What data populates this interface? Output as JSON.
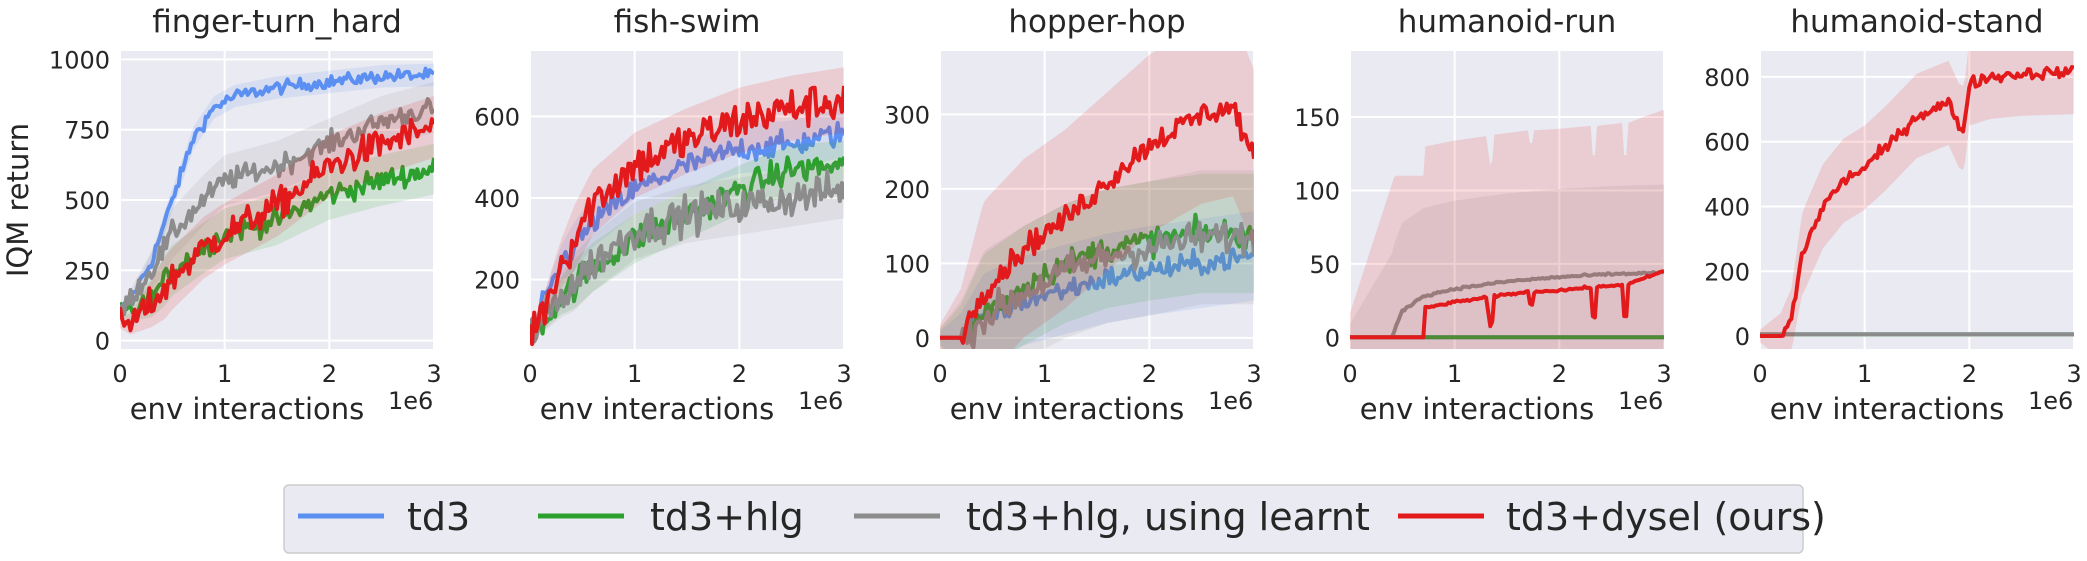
{
  "chart_data": [
    {
      "type": "line",
      "title": "finger-turn_hard",
      "xlabel": "env interactions",
      "x_offset_label": "1e6",
      "ylabel": "IQM return",
      "xlim": [
        0,
        3
      ],
      "ylim": [
        -30,
        1030
      ],
      "xticks": [
        0,
        1,
        2,
        3
      ],
      "yticks": [
        0,
        250,
        500,
        750,
        1000
      ],
      "series": [
        {
          "name": "td3",
          "color": "#5b8ff1",
          "noise": 22,
          "band": 40,
          "x": [
            0,
            0.1,
            0.3,
            0.5,
            0.7,
            0.9,
            1.1,
            1.5,
            2.0,
            2.5,
            3.0
          ],
          "y": [
            100,
            150,
            280,
            500,
            720,
            830,
            870,
            900,
            920,
            940,
            945
          ]
        },
        {
          "name": "td3+hlg",
          "color": "#2ca02c",
          "noise": 40,
          "band": 90,
          "x": [
            0,
            0.1,
            0.3,
            0.5,
            0.8,
            1.0,
            1.5,
            2.0,
            2.5,
            3.0
          ],
          "y": [
            100,
            100,
            150,
            250,
            330,
            380,
            430,
            520,
            570,
            610
          ]
        },
        {
          "name": "td3+hlg, using learnt",
          "color": "#8c8c8c",
          "noise": 38,
          "band": 90,
          "x": [
            0,
            0.1,
            0.3,
            0.5,
            0.8,
            1.0,
            1.5,
            2.0,
            2.5,
            3.0
          ],
          "y": [
            100,
            150,
            250,
            380,
            500,
            570,
            620,
            700,
            780,
            830
          ]
        },
        {
          "name": "td3+dysel (ours)",
          "color": "#e31a1c",
          "noise": 55,
          "band": 110,
          "x": [
            0,
            0.1,
            0.3,
            0.5,
            0.8,
            1.0,
            1.5,
            2.0,
            2.5,
            3.0
          ],
          "y": [
            60,
            60,
            130,
            220,
            330,
            380,
            480,
            620,
            700,
            760
          ]
        }
      ]
    },
    {
      "type": "line",
      "title": "fish-swim",
      "xlabel": "env interactions",
      "x_offset_label": "1e6",
      "ylabel": "",
      "xlim": [
        0,
        3
      ],
      "ylim": [
        30,
        760
      ],
      "xticks": [
        0,
        1,
        2,
        3
      ],
      "yticks": [
        200,
        400,
        600
      ],
      "series": [
        {
          "name": "td3",
          "color": "#5b8ff1",
          "noise": 30,
          "band": 60,
          "x": [
            0,
            0.1,
            0.3,
            0.6,
            1.0,
            1.5,
            2.0,
            2.5,
            3.0
          ],
          "y": [
            70,
            120,
            240,
            340,
            420,
            480,
            520,
            530,
            560
          ]
        },
        {
          "name": "td3+hlg",
          "color": "#2ca02c",
          "noise": 35,
          "band": 60,
          "x": [
            0,
            0.1,
            0.3,
            0.6,
            1.0,
            1.5,
            2.0,
            2.5,
            3.0
          ],
          "y": [
            70,
            90,
            160,
            230,
            300,
            360,
            420,
            470,
            480
          ]
        },
        {
          "name": "td3+hlg, using learnt",
          "color": "#8c8c8c",
          "noise": 45,
          "band": 70,
          "x": [
            0,
            0.1,
            0.3,
            0.6,
            1.0,
            1.5,
            2.0,
            2.5,
            3.0
          ],
          "y": [
            70,
            90,
            160,
            240,
            320,
            360,
            380,
            400,
            420
          ]
        },
        {
          "name": "td3+dysel (ours)",
          "color": "#e31a1c",
          "noise": 50,
          "band": 80,
          "x": [
            0,
            0.1,
            0.3,
            0.6,
            1.0,
            1.5,
            2.0,
            2.5,
            3.0
          ],
          "y": [
            70,
            110,
            240,
            390,
            480,
            540,
            590,
            620,
            640
          ]
        }
      ]
    },
    {
      "type": "line",
      "title": "hopper-hop",
      "xlabel": "env interactions",
      "x_offset_label": "1e6",
      "ylabel": "",
      "xlim": [
        0,
        3
      ],
      "ylim": [
        -15,
        385
      ],
      "xticks": [
        0,
        1,
        2,
        3
      ],
      "yticks": [
        0,
        100,
        200,
        300
      ],
      "series": [
        {
          "name": "td3",
          "color": "#5b8ff1",
          "noise": 15,
          "band": 60,
          "x": [
            0,
            0.2,
            0.4,
            0.8,
            1.2,
            1.6,
            2.0,
            2.5,
            3.0
          ],
          "y": [
            0,
            0,
            25,
            50,
            65,
            80,
            90,
            100,
            110
          ]
        },
        {
          "name": "td3+hlg",
          "color": "#2ca02c",
          "noise": 18,
          "band": 80,
          "x": [
            0,
            0.2,
            0.4,
            0.8,
            1.2,
            1.6,
            2.0,
            2.5,
            3.0
          ],
          "y": [
            0,
            0,
            30,
            70,
            100,
            120,
            130,
            140,
            140
          ]
        },
        {
          "name": "td3+hlg, using learnt",
          "color": "#8c8c8c",
          "noise": 22,
          "band": 90,
          "x": [
            0,
            0.2,
            0.4,
            0.8,
            1.2,
            1.6,
            2.0,
            2.5,
            3.0
          ],
          "y": [
            0,
            0,
            25,
            60,
            90,
            110,
            120,
            135,
            135
          ]
        },
        {
          "name": "td3+dysel (ours)",
          "color": "#e31a1c",
          "noise": 16,
          "band": 120,
          "x": [
            0,
            0.2,
            0.4,
            0.8,
            1.2,
            1.6,
            2.0,
            2.5,
            2.8,
            3.0
          ],
          "y": [
            0,
            0,
            60,
            120,
            160,
            210,
            260,
            300,
            310,
            240
          ]
        }
      ]
    },
    {
      "type": "line",
      "title": "humanoid-run",
      "xlabel": "env interactions",
      "x_offset_label": "1e6",
      "ylabel": "",
      "xlim": [
        0,
        3
      ],
      "ylim": [
        -8,
        195
      ],
      "xticks": [
        0,
        1,
        2,
        3
      ],
      "yticks": [
        0,
        50,
        100,
        150
      ],
      "series": [
        {
          "name": "td3",
          "color": "#5b8ff1",
          "noise": 0,
          "band": 0,
          "x": [
            0,
            3.0
          ],
          "y": [
            0,
            0
          ]
        },
        {
          "name": "td3+hlg",
          "color": "#2ca02c",
          "noise": 0,
          "band": 0,
          "x": [
            0,
            3.0
          ],
          "y": [
            0,
            0
          ]
        },
        {
          "name": "td3+hlg, using learnt",
          "color": "#8c8c8c",
          "noise": 0.8,
          "band": 60,
          "x": [
            0,
            0.4,
            0.5,
            0.7,
            1.0,
            1.5,
            2.0,
            2.5,
            3.0
          ],
          "y": [
            0,
            0,
            18,
            28,
            33,
            38,
            41,
            43,
            44
          ]
        },
        {
          "name": "td3+dysel (ours)",
          "color": "#e31a1c",
          "noise": 0.8,
          "band": 110,
          "x": [
            0,
            0.7,
            0.72,
            1.0,
            1.3,
            1.35,
            1.38,
            1.6,
            1.7,
            1.73,
            1.76,
            2.0,
            2.3,
            2.33,
            2.36,
            2.6,
            2.63,
            2.66,
            2.8,
            3.0
          ],
          "y": [
            0,
            0,
            20,
            24,
            27,
            2,
            28,
            30,
            31,
            18,
            31,
            32,
            34,
            4,
            34,
            36,
            3,
            36,
            40,
            45
          ]
        }
      ]
    },
    {
      "type": "line",
      "title": "humanoid-stand",
      "xlabel": "env interactions",
      "x_offset_label": "1e6",
      "ylabel": "",
      "xlim": [
        0,
        3
      ],
      "ylim": [
        -40,
        880
      ],
      "xticks": [
        0,
        1,
        2,
        3
      ],
      "yticks": [
        0,
        200,
        400,
        600,
        800
      ],
      "series": [
        {
          "name": "td3",
          "color": "#5b8ff1",
          "noise": 0,
          "band": 0,
          "x": [
            0,
            3.0
          ],
          "y": [
            5,
            5
          ]
        },
        {
          "name": "td3+hlg",
          "color": "#2ca02c",
          "noise": 0,
          "band": 0,
          "x": [
            0,
            3.0
          ],
          "y": [
            5,
            5
          ]
        },
        {
          "name": "td3+hlg, using learnt",
          "color": "#8c8c8c",
          "noise": 0,
          "band": 0,
          "x": [
            0,
            3.0
          ],
          "y": [
            5,
            5
          ]
        },
        {
          "name": "td3+dysel (ours)",
          "color": "#e31a1c",
          "noise": 18,
          "band": 130,
          "x": [
            0,
            0.2,
            0.3,
            0.4,
            0.6,
            0.8,
            1.0,
            1.2,
            1.5,
            1.8,
            1.9,
            1.95,
            2.0,
            2.2,
            2.5,
            3.0
          ],
          "y": [
            0,
            0,
            50,
            250,
            400,
            480,
            520,
            580,
            680,
            720,
            650,
            640,
            780,
            800,
            810,
            815
          ]
        }
      ]
    }
  ],
  "legend": {
    "placement": "bottom-center",
    "items": [
      {
        "label": "td3",
        "color": "#5b8ff1"
      },
      {
        "label": "td3+hlg",
        "color": "#2ca02c"
      },
      {
        "label": "td3+hlg, using learnt",
        "color": "#8c8c8c"
      },
      {
        "label": "td3+dysel (ours)",
        "color": "#e31a1c"
      }
    ]
  }
}
